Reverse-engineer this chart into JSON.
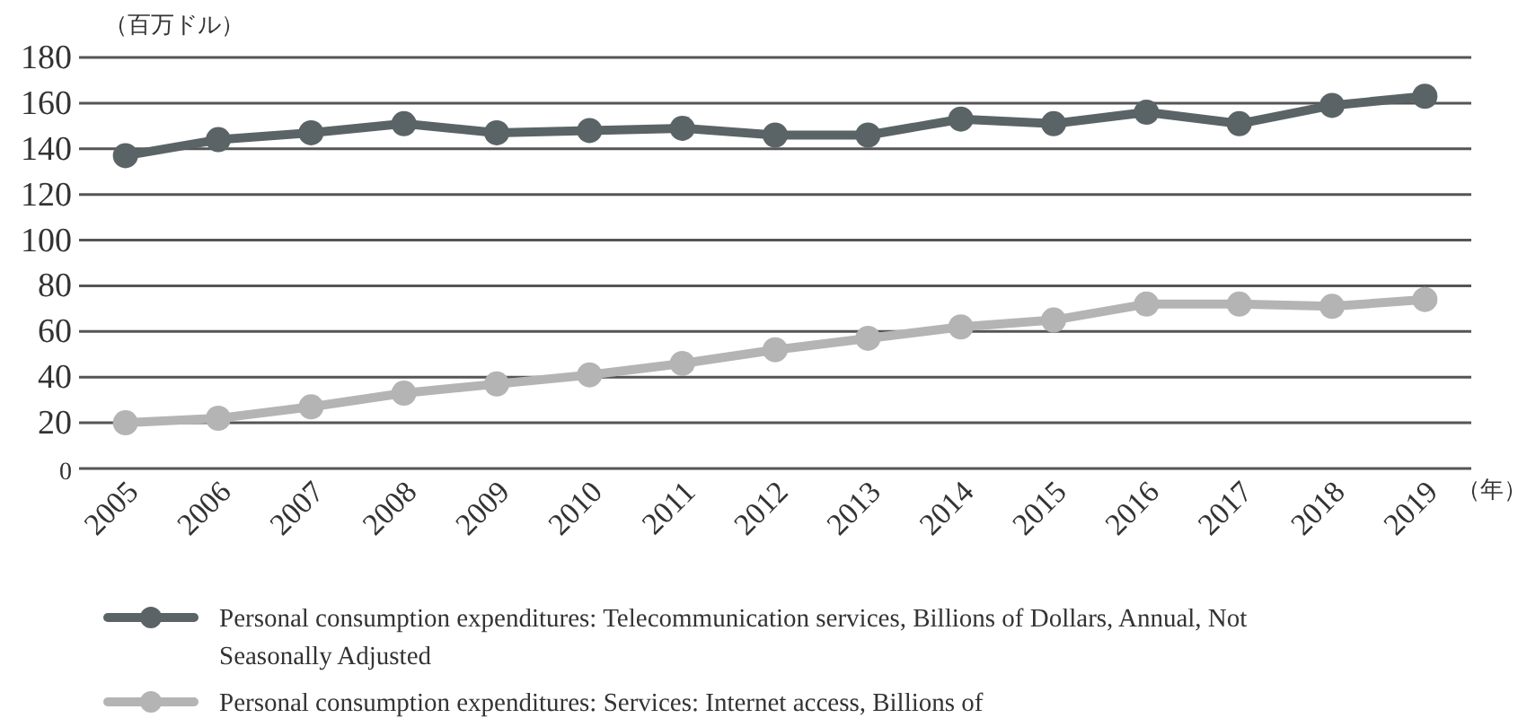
{
  "chart_data": {
    "type": "line",
    "xlabel": "（年）",
    "ylabel": "（百万ドル）",
    "categories": [
      "2005",
      "2006",
      "2007",
      "2008",
      "2009",
      "2010",
      "2011",
      "2012",
      "2013",
      "2014",
      "2015",
      "2016",
      "2017",
      "2018",
      "2019"
    ],
    "series": [
      {
        "name": "Personal consumption expenditures: Telecommunication services, Billions of Dollars, Annual, Not Seasonally Adjusted",
        "color": "#5a6466",
        "values": [
          137,
          144,
          147,
          151,
          147,
          148,
          149,
          146,
          146,
          153,
          151,
          156,
          151,
          159,
          163
        ]
      },
      {
        "name": "Personal consumption expenditures: Services: Internet access, Billions of",
        "color": "#b4b4b4",
        "values": [
          20,
          22,
          27,
          33,
          37,
          41,
          46,
          52,
          57,
          62,
          65,
          72,
          72,
          71,
          74
        ]
      }
    ],
    "ylim": [
      0,
      180
    ],
    "yticks": [
      0,
      20,
      40,
      60,
      80,
      100,
      120,
      140,
      160,
      180
    ],
    "grid": "y",
    "legend": "bottom",
    "marker": "circle",
    "line_style": "solid"
  }
}
